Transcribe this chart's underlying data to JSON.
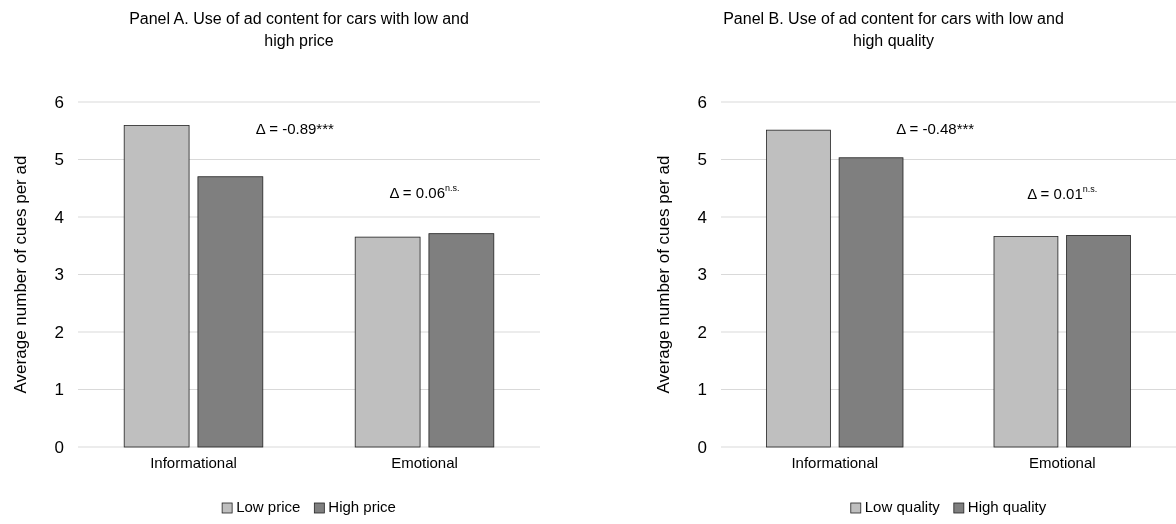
{
  "chart_data": [
    {
      "type": "bar",
      "title": "Panel A. Use of ad content for cars with low and high price",
      "ylabel": "Average number of cues per ad",
      "categories": [
        "Informational",
        "Emotional"
      ],
      "series": [
        {
          "name": "Low price",
          "color": "#bfbfbf",
          "values": [
            5.59,
            3.65
          ]
        },
        {
          "name": "High price",
          "color": "#7f7f7f",
          "values": [
            4.7,
            3.71
          ]
        }
      ],
      "ylim": [
        0,
        6
      ],
      "yticks": [
        0,
        1,
        2,
        3,
        4,
        5,
        6
      ],
      "grid": "y",
      "legend": "bottom",
      "annotations": [
        "Δ = -0.89***",
        "Δ = 0.06$^{n.s.}$"
      ]
    },
    {
      "type": "bar",
      "title": "Panel B. Use of ad content for cars with low and high quality",
      "ylabel": "Average number of cues per ad",
      "categories": [
        "Informational",
        "Emotional"
      ],
      "series": [
        {
          "name": "Low quality",
          "color": "#bfbfbf",
          "values": [
            5.51,
            3.66
          ]
        },
        {
          "name": "High quality",
          "color": "#7f7f7f",
          "values": [
            5.03,
            3.68
          ]
        }
      ],
      "ylim": [
        0,
        6
      ],
      "yticks": [
        0,
        1,
        2,
        3,
        4,
        5,
        6
      ],
      "grid": "y",
      "legend": "bottom",
      "annotations": [
        "Δ = -0.48***",
        "Δ = 0.01$^{n.s.}$"
      ]
    }
  ]
}
